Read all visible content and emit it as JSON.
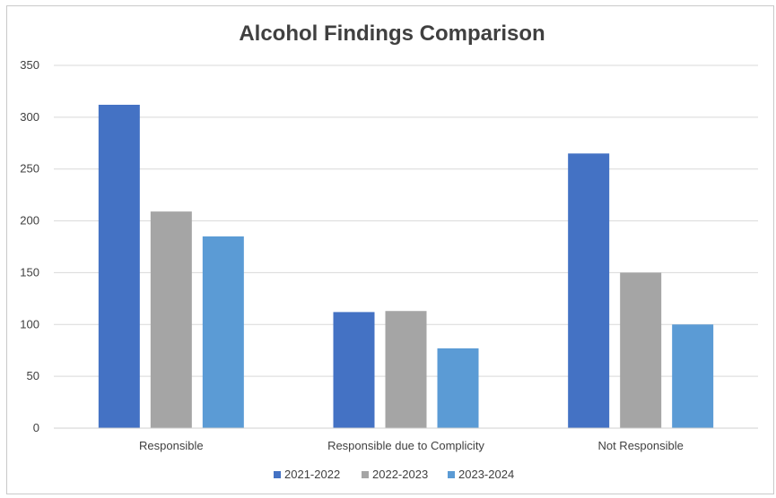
{
  "chart_data": {
    "type": "bar",
    "title": "Alcohol Findings Comparison",
    "xlabel": "",
    "ylabel": "",
    "categories": [
      "Responsible",
      "Responsible due to Complicity",
      "Not Responsible"
    ],
    "series": [
      {
        "name": "2021-2022",
        "values": [
          312,
          112,
          265
        ],
        "color": "#4472c4"
      },
      {
        "name": "2022-2023",
        "values": [
          209,
          113,
          150
        ],
        "color": "#a5a5a5"
      },
      {
        "name": "2023-2024",
        "values": [
          185,
          77,
          100
        ],
        "color": "#5b9bd5"
      }
    ],
    "ylim": [
      0,
      350
    ],
    "yticks": [
      0,
      50,
      100,
      150,
      200,
      250,
      300,
      350
    ],
    "grid": true,
    "legend_position": "bottom"
  }
}
